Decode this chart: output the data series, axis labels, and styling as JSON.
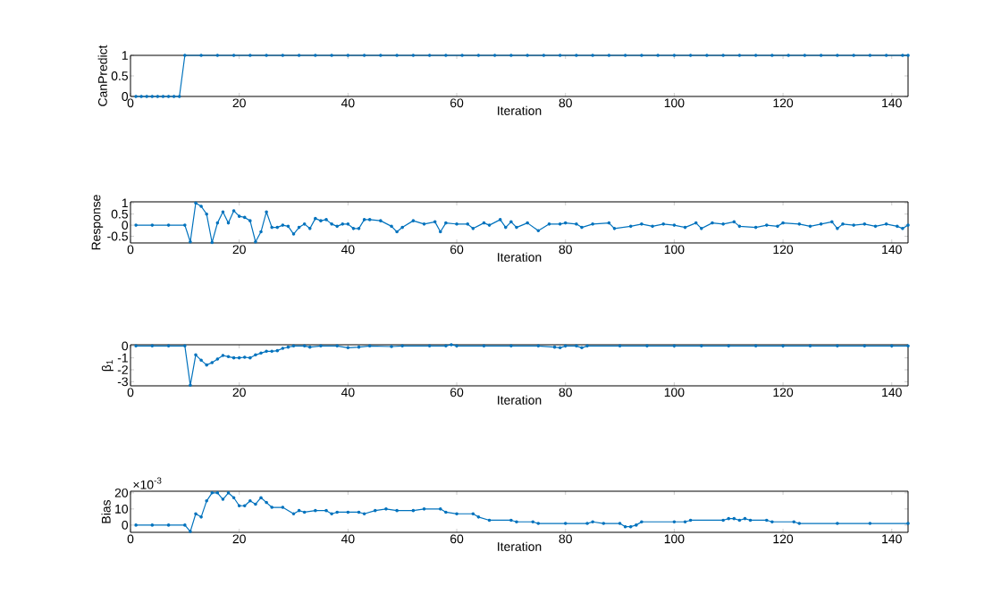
{
  "chart_data": [
    {
      "type": "line",
      "xlabel": "Iteration",
      "ylabel": "CanPredict",
      "color": "#0072bd",
      "marker": "circle",
      "line_style": "solid",
      "xlim": [
        0,
        143
      ],
      "xticks": [
        0,
        20,
        40,
        60,
        80,
        100,
        120,
        140
      ],
      "ylim": [
        0,
        1
      ],
      "yticks": [
        0,
        0.5,
        1
      ],
      "x": [
        1,
        2,
        3,
        4,
        5,
        6,
        7,
        8,
        9,
        10,
        13,
        16,
        19,
        22,
        25,
        28,
        31,
        34,
        37,
        40,
        43,
        46,
        49,
        52,
        55,
        58,
        61,
        64,
        67,
        70,
        73,
        76,
        79,
        82,
        85,
        88,
        91,
        94,
        97,
        100,
        103,
        106,
        109,
        112,
        115,
        118,
        121,
        124,
        127,
        130,
        133,
        136,
        139,
        142,
        143
      ],
      "values": [
        0,
        0,
        0,
        0,
        0,
        0,
        0,
        0,
        0,
        1,
        1,
        1,
        1,
        1,
        1,
        1,
        1,
        1,
        1,
        1,
        1,
        1,
        1,
        1,
        1,
        1,
        1,
        1,
        1,
        1,
        1,
        1,
        1,
        1,
        1,
        1,
        1,
        1,
        1,
        1,
        1,
        1,
        1,
        1,
        1,
        1,
        1,
        1,
        1,
        1,
        1,
        1,
        1,
        1,
        1
      ]
    },
    {
      "type": "line",
      "xlabel": "Iteration",
      "ylabel": "Response",
      "color": "#0072bd",
      "marker": "circle",
      "line_style": "solid",
      "xlim": [
        0,
        143
      ],
      "xticks": [
        0,
        20,
        40,
        60,
        80,
        100,
        120,
        140
      ],
      "ylim": [
        -0.8,
        1.05
      ],
      "yticks": [
        -0.5,
        0,
        0.5,
        1
      ],
      "x": [
        1,
        4,
        7,
        10,
        11,
        12,
        13,
        14,
        15,
        16,
        17,
        18,
        19,
        20,
        21,
        22,
        23,
        24,
        25,
        26,
        27,
        28,
        29,
        30,
        31,
        32,
        33,
        34,
        35,
        36,
        37,
        38,
        39,
        40,
        41,
        42,
        43,
        44,
        46,
        48,
        49,
        50,
        52,
        54,
        56,
        57,
        58,
        60,
        62,
        63,
        65,
        66,
        68,
        69,
        70,
        71,
        73,
        75,
        77,
        79,
        80,
        82,
        83,
        85,
        88,
        89,
        92,
        94,
        96,
        98,
        100,
        102,
        104,
        105,
        107,
        109,
        111,
        112,
        115,
        117,
        119,
        120,
        123,
        125,
        127,
        129,
        130,
        131,
        133,
        135,
        137,
        139,
        141,
        142,
        143
      ],
      "values": [
        0,
        0,
        0,
        0,
        -0.75,
        1.0,
        0.85,
        0.5,
        -0.78,
        0.1,
        0.6,
        0.1,
        0.65,
        0.4,
        0.35,
        0.2,
        -0.75,
        -0.3,
        0.6,
        -0.1,
        -0.1,
        0,
        -0.05,
        -0.4,
        -0.1,
        0.05,
        -0.15,
        0.3,
        0.2,
        0.25,
        0.05,
        -0.05,
        0.05,
        0.05,
        -0.15,
        -0.15,
        0.25,
        0.25,
        0.2,
        -0.05,
        -0.3,
        -0.1,
        0.2,
        0.05,
        0.15,
        -0.3,
        0.1,
        0.05,
        0.05,
        -0.15,
        0.1,
        0,
        0.25,
        -0.1,
        0.15,
        -0.1,
        0.1,
        -0.25,
        0.05,
        0.05,
        0.1,
        0.05,
        -0.1,
        0.05,
        0.1,
        -0.15,
        -0.05,
        0.05,
        -0.05,
        0.05,
        0,
        -0.1,
        0.1,
        -0.15,
        0.1,
        0.05,
        0.15,
        -0.05,
        -0.1,
        0,
        -0.05,
        0.1,
        0.05,
        -0.05,
        0.05,
        0.15,
        -0.15,
        0.05,
        0,
        0.05,
        -0.05,
        0.05,
        -0.05,
        -0.15,
        0
      ]
    },
    {
      "type": "line",
      "xlabel": "Iteration",
      "ylabel": "β$_{1}$",
      "color": "#0072bd",
      "marker": "circle",
      "line_style": "solid",
      "xlim": [
        0,
        143
      ],
      "xticks": [
        0,
        20,
        40,
        60,
        80,
        100,
        120,
        140
      ],
      "ylim": [
        -3.35,
        0.1
      ],
      "yticks": [
        -3,
        -2,
        -1,
        0
      ],
      "x": [
        1,
        4,
        7,
        10,
        11,
        12,
        13,
        14,
        15,
        16,
        17,
        18,
        19,
        20,
        21,
        22,
        23,
        24,
        25,
        26,
        27,
        28,
        29,
        30,
        32,
        33,
        35,
        38,
        40,
        42,
        44,
        48,
        50,
        55,
        58,
        59,
        60,
        65,
        70,
        75,
        78,
        79,
        80,
        82,
        83,
        84,
        90,
        95,
        100,
        105,
        110,
        115,
        120,
        125,
        130,
        135,
        140,
        143
      ],
      "values": [
        0,
        0,
        0,
        0,
        -3.3,
        -0.75,
        -1.2,
        -1.6,
        -1.4,
        -1.1,
        -0.8,
        -0.9,
        -1.0,
        -1.0,
        -0.95,
        -1.0,
        -0.75,
        -0.6,
        -0.45,
        -0.45,
        -0.4,
        -0.2,
        -0.1,
        0,
        0,
        -0.1,
        0,
        0,
        -0.15,
        -0.1,
        0,
        -0.05,
        0,
        0,
        0,
        0.1,
        0,
        0,
        0,
        0,
        -0.1,
        -0.15,
        0,
        0,
        -0.15,
        0,
        0,
        0,
        0,
        0,
        0,
        0,
        0,
        0,
        0,
        0,
        0,
        0
      ]
    },
    {
      "type": "line",
      "xlabel": "Iteration",
      "ylabel": "Bias",
      "annotations": [
        "×10$^{-3}$"
      ],
      "color": "#0072bd",
      "marker": "circle",
      "line_style": "solid",
      "xlim": [
        0,
        143
      ],
      "xticks": [
        0,
        20,
        40,
        60,
        80,
        100,
        120,
        140
      ],
      "ylim": [
        -4.5,
        21
      ],
      "yticks": [
        0,
        10,
        20
      ],
      "x": [
        1,
        4,
        7,
        10,
        11,
        12,
        13,
        14,
        15,
        16,
        17,
        18,
        19,
        20,
        21,
        22,
        23,
        24,
        25,
        26,
        28,
        30,
        31,
        32,
        34,
        36,
        37,
        38,
        40,
        42,
        43,
        45,
        47,
        49,
        52,
        54,
        57,
        58,
        60,
        63,
        64,
        66,
        70,
        71,
        74,
        75,
        80,
        84,
        85,
        87,
        90,
        91,
        92,
        93,
        94,
        100,
        102,
        103,
        109,
        110,
        111,
        112,
        113,
        114,
        117,
        118,
        122,
        123,
        130,
        136,
        143
      ],
      "values": [
        0,
        0,
        0,
        0,
        -4,
        7,
        5,
        15,
        20,
        20,
        16,
        20,
        17,
        12,
        12,
        15,
        13,
        17,
        14,
        11,
        11,
        7,
        9,
        8,
        9,
        9,
        7,
        8,
        8,
        8,
        7,
        9,
        10,
        9,
        9,
        10,
        10,
        8,
        7,
        7,
        5,
        3,
        3,
        2,
        2,
        1,
        1,
        1,
        2,
        1,
        1,
        -1,
        -1,
        0,
        2,
        2,
        2,
        3,
        3,
        4,
        4,
        3,
        4,
        3,
        3,
        2,
        2,
        1,
        1,
        1,
        1
      ]
    }
  ]
}
